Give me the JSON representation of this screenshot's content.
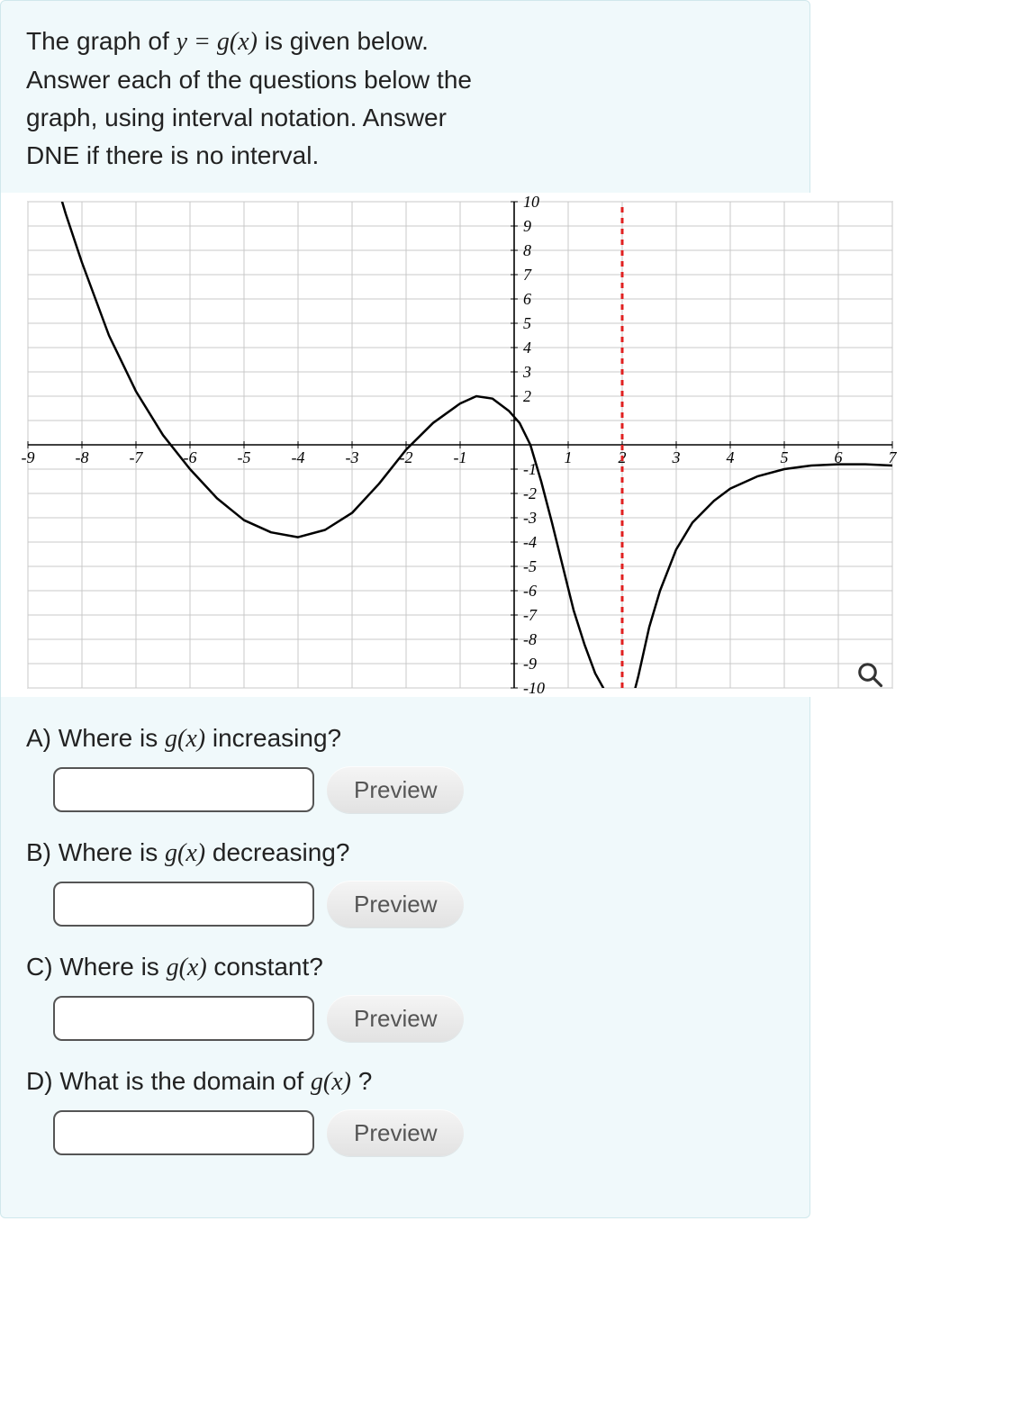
{
  "prompt": {
    "line1_pre": "The graph of ",
    "line1_eq": "y = g(x)",
    "line1_post": " is given below.",
    "line2": "Answer each of the questions below the",
    "line3": "graph, using interval notation. Answer",
    "line4": "DNE if there is no interval."
  },
  "graph": {
    "type": "line",
    "xlim": [
      -9,
      7
    ],
    "ylim": [
      -10,
      10
    ],
    "xtick_step": 1,
    "ytick_step": 1,
    "grid_color": "#c8c8c8",
    "axis_color": "#000000",
    "curve_color": "#000000",
    "curve_width": 2.5,
    "asymptote": {
      "x": 2,
      "color": "#e02020",
      "dash": "6,6",
      "width": 3
    },
    "background_color": "#ffffff",
    "tick_font": "italic 18px Times New Roman",
    "x_ticks_labeled": [
      -9,
      -8,
      -7,
      -6,
      -5,
      -4,
      -3,
      -2,
      -1,
      1,
      2,
      3,
      4,
      5,
      6,
      7
    ],
    "y_ticks_labeled": [
      -10,
      -9,
      -8,
      -7,
      -6,
      -5,
      -4,
      -3,
      -2,
      -1,
      2,
      3,
      4,
      5,
      6,
      7,
      8,
      9,
      10
    ],
    "curves": [
      {
        "name": "left-branch",
        "points": [
          [
            -8.5,
            11
          ],
          [
            -8.3,
            9.5
          ],
          [
            -8,
            7.5
          ],
          [
            -7.5,
            4.5
          ],
          [
            -7,
            2.2
          ],
          [
            -6.5,
            0.4
          ],
          [
            -6,
            -1.0
          ],
          [
            -5.5,
            -2.2
          ],
          [
            -5,
            -3.1
          ],
          [
            -4.5,
            -3.6
          ],
          [
            -4,
            -3.8
          ],
          [
            -3.5,
            -3.5
          ],
          [
            -3,
            -2.8
          ],
          [
            -2.5,
            -1.6
          ],
          [
            -2,
            -0.2
          ],
          [
            -1.5,
            0.9
          ],
          [
            -1.0,
            1.7
          ],
          [
            -0.7,
            2.0
          ],
          [
            -0.4,
            1.9
          ],
          [
            -0.1,
            1.4
          ],
          [
            0.1,
            0.9
          ],
          [
            0.3,
            0.0
          ],
          [
            0.5,
            -1.5
          ],
          [
            0.7,
            -3.2
          ],
          [
            0.9,
            -5.0
          ],
          [
            1.1,
            -6.8
          ],
          [
            1.3,
            -8.2
          ],
          [
            1.5,
            -9.4
          ],
          [
            1.7,
            -10.2
          ],
          [
            1.85,
            -10.8
          ]
        ]
      },
      {
        "name": "right-branch",
        "points": [
          [
            2.15,
            -10.8
          ],
          [
            2.3,
            -9.5
          ],
          [
            2.5,
            -7.5
          ],
          [
            2.7,
            -6.0
          ],
          [
            3.0,
            -4.3
          ],
          [
            3.3,
            -3.2
          ],
          [
            3.7,
            -2.3
          ],
          [
            4.0,
            -1.8
          ],
          [
            4.5,
            -1.3
          ],
          [
            5.0,
            -1.0
          ],
          [
            5.5,
            -0.85
          ],
          [
            6.0,
            -0.8
          ],
          [
            6.5,
            -0.8
          ],
          [
            7.0,
            -0.85
          ]
        ]
      }
    ]
  },
  "questions": {
    "a": {
      "label_pre": "A)  Where is  ",
      "fn": "g(x)",
      "label_post": " increasing?",
      "preview": "Preview"
    },
    "b": {
      "label_pre": "B)  Where is ",
      "fn": "g(x)",
      "label_post": " decreasing?",
      "preview": "Preview"
    },
    "c": {
      "label_pre": "C) Where is ",
      "fn": "g(x)",
      "label_post": " constant?",
      "preview": "Preview"
    },
    "d": {
      "label_pre": "D) What is the domain of ",
      "fn": "g(x)",
      "label_post": " ?",
      "preview": "Preview"
    }
  }
}
